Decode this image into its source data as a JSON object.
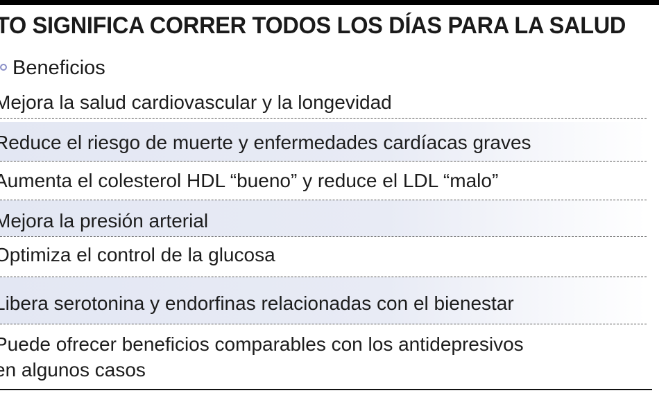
{
  "header": {
    "title": "TO SIGNIFICA CORRER TODOS LOS DÍAS PARA LA SALUD"
  },
  "section": {
    "label": "Beneficios",
    "accent": "#8a8fc8"
  },
  "benefits": [
    {
      "text": "Mejora la salud cardiovascular y la longevidad",
      "shaded": false
    },
    {
      "text": "Reduce el riesgo de muerte y enfermedades cardíacas graves",
      "shaded": true
    },
    {
      "text": "Aumenta el colesterol HDL “bueno” y reduce el LDL “malo”",
      "shaded": false
    },
    {
      "text": "Mejora la presión arterial",
      "shaded": true
    },
    {
      "text": "Optimiza el control de la glucosa",
      "shaded": false
    },
    {
      "text": "Libera serotonina y endorfinas relacionadas con el bienestar",
      "shaded": true
    },
    {
      "text": "Puede ofrecer beneficios comparables con los antidepresivos",
      "text2": "en algunos casos",
      "shaded": false
    }
  ]
}
